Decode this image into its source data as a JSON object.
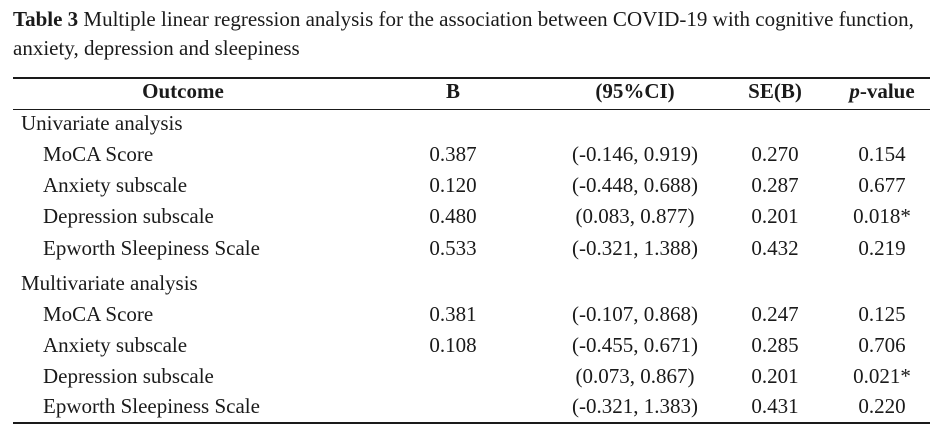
{
  "caption": {
    "label": "Table 3",
    "text": "Multiple linear regression analysis for the association between COVID-19 with cognitive function, anxiety, depression and sleepiness"
  },
  "table": {
    "headers": {
      "outcome": "Outcome",
      "b": "B",
      "ci": "(95%CI)",
      "se": "SE(B)",
      "p_italic": "p",
      "p_rest": "-value"
    },
    "groups": [
      {
        "label": "Univariate analysis",
        "rows": [
          {
            "outcome": "MoCA Score",
            "b": "0.387",
            "ci": "(-0.146, 0.919)",
            "se": "0.270",
            "p": "0.154"
          },
          {
            "outcome": "Anxiety subscale",
            "b": "0.120",
            "ci": "(-0.448, 0.688)",
            "se": "0.287",
            "p": "0.677"
          },
          {
            "outcome": "Depression subscale",
            "b": "0.480",
            "ci": "(0.083, 0.877)",
            "se": "0.201",
            "p": "0.018*"
          },
          {
            "outcome": "Epworth Sleepiness Scale",
            "b": "0.533",
            "ci": "(-0.321, 1.388)",
            "se": "0.432",
            "p": "0.219"
          }
        ]
      },
      {
        "label": "Multivariate analysis",
        "rows": [
          {
            "outcome": "MoCA Score",
            "b": "0.381",
            "ci": "(-0.107, 0.868)",
            "se": "0.247",
            "p": "0.125"
          },
          {
            "outcome": "Anxiety subscale",
            "b": "0.108",
            "ci": "(-0.455, 0.671)",
            "se": "0.285",
            "p": "0.706"
          },
          {
            "outcome": "Depression subscale",
            "b": "",
            "ci": "(0.073, 0.867)",
            "se": "0.201",
            "p": "0.021*"
          },
          {
            "outcome": "Epworth Sleepiness Scale",
            "b": "",
            "ci": "(-0.321, 1.383)",
            "se": "0.431",
            "p": "0.220"
          }
        ]
      }
    ]
  }
}
